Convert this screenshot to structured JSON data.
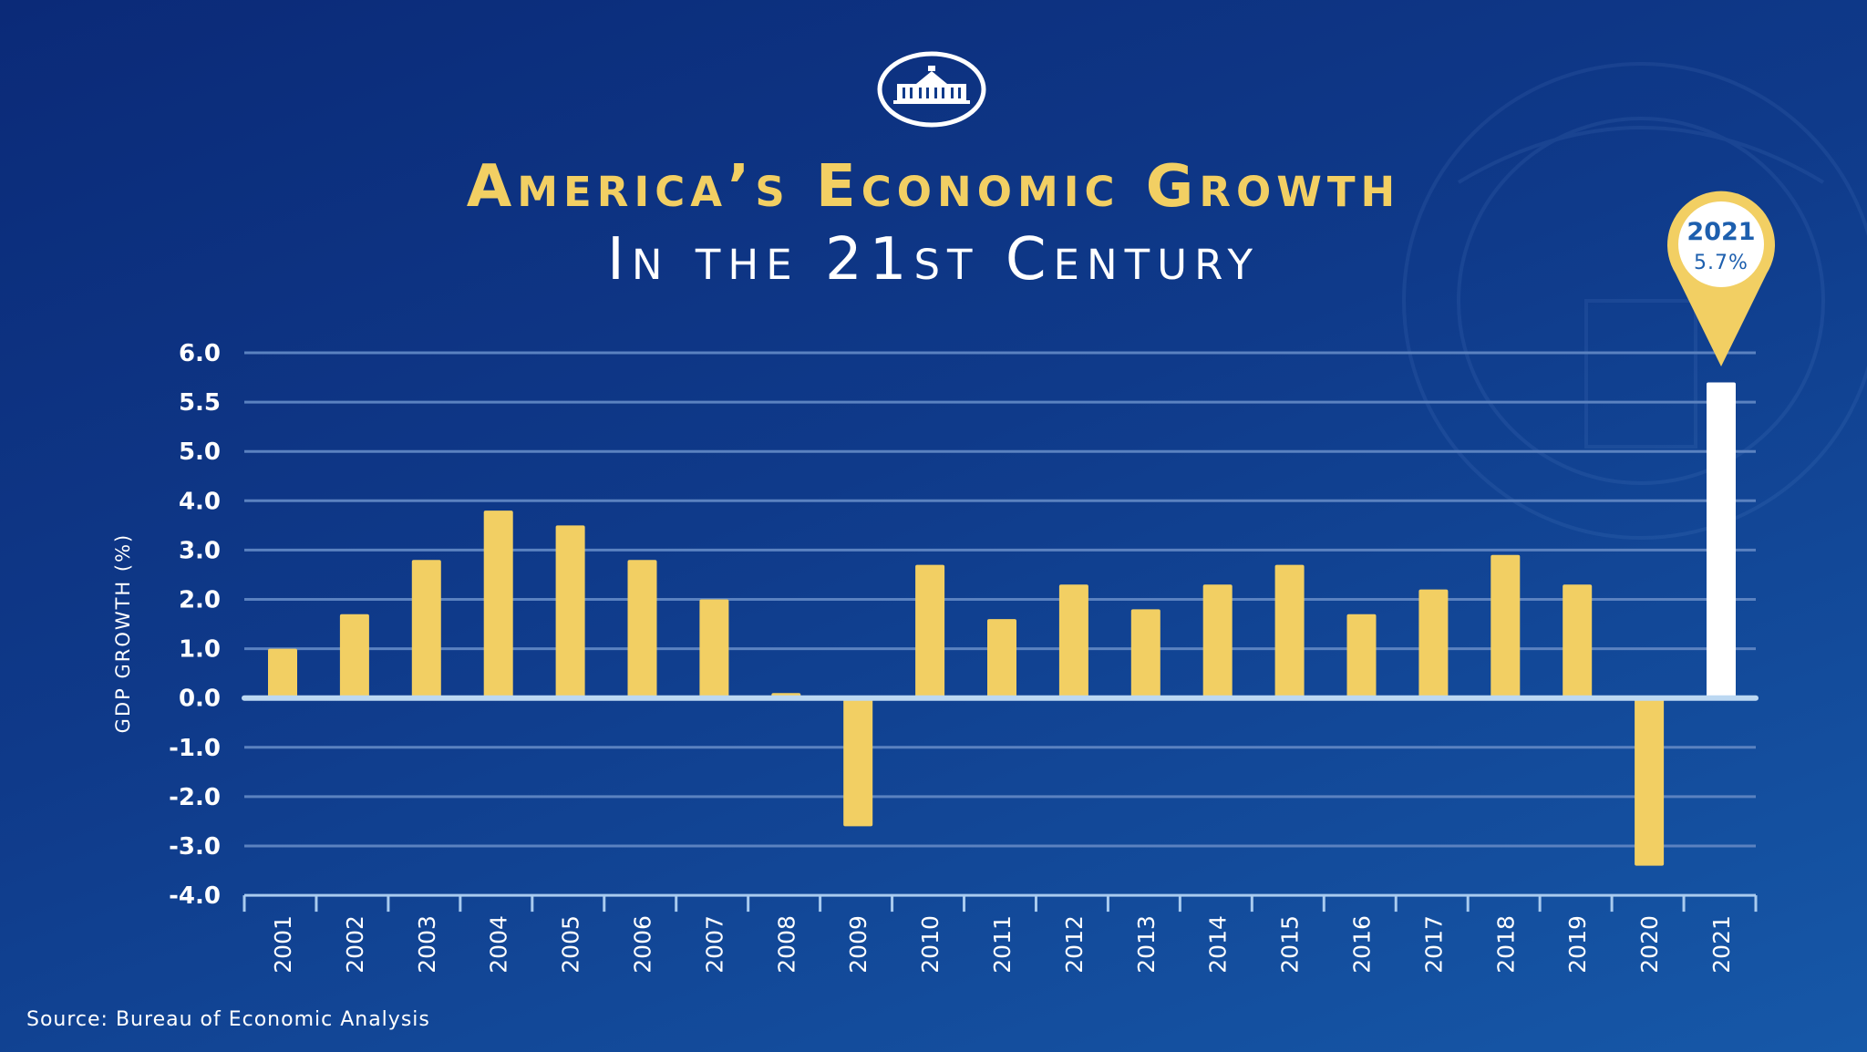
{
  "header": {
    "logo": "White House seal",
    "title_line1": "America’s Economic Growth",
    "title_line2": "In the 21st Century"
  },
  "footer": {
    "source": "Source: Bureau of Economic Analysis"
  },
  "colors": {
    "bar": "#f2cf63",
    "highlight_bar": "#ffffff",
    "background": "#0f3a8a",
    "gridline": "#5b82c0",
    "callout_text": "#1d5fae"
  },
  "chart_data": {
    "type": "bar",
    "title": "America’s Economic Growth In the 21st Century",
    "xlabel": "",
    "ylabel": "GDP Growth (%)",
    "ylim": [
      -4.0,
      6.0
    ],
    "yticks": [
      "6.0",
      "5.5",
      "5.0",
      "4.0",
      "3.0",
      "2.0",
      "1.0",
      "0.0",
      "-1.0",
      "-2.0",
      "-3.0",
      "-4.0"
    ],
    "ytick_values": [
      6.0,
      5.5,
      5.0,
      4.0,
      3.0,
      2.0,
      1.0,
      0.0,
      -1.0,
      -2.0,
      -3.0,
      -4.0
    ],
    "grid": true,
    "categories": [
      "2001",
      "2002",
      "2003",
      "2004",
      "2005",
      "2006",
      "2007",
      "2008",
      "2009",
      "2010",
      "2011",
      "2012",
      "2013",
      "2014",
      "2015",
      "2016",
      "2017",
      "2018",
      "2019",
      "2020",
      "2021"
    ],
    "values": [
      1.0,
      1.7,
      2.8,
      3.8,
      3.5,
      2.8,
      2.0,
      0.1,
      -2.6,
      2.7,
      1.6,
      2.3,
      1.8,
      2.3,
      2.7,
      1.7,
      2.2,
      2.9,
      2.3,
      -3.4,
      5.7
    ],
    "highlight": {
      "category": "2021",
      "year_label": "2021",
      "value_label": "5.7%"
    }
  }
}
